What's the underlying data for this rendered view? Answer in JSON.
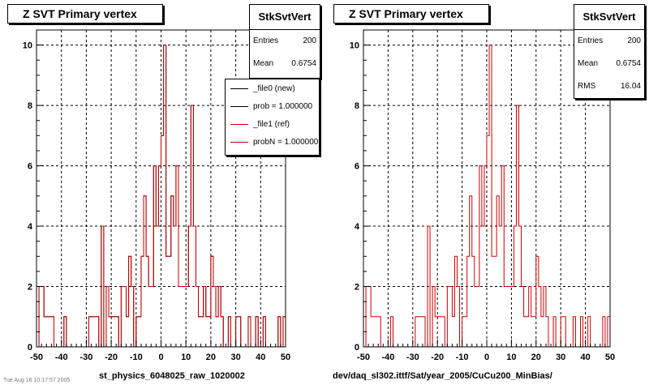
{
  "colors": {
    "ref": "#cc0000",
    "new": "#000000",
    "grid": "#000000"
  },
  "footer_text": "Tue Aug 16 10:17:57 2005",
  "panels": [
    {
      "title": "Z SVT Primary vertex",
      "stats": {
        "name": "StkSvtVert",
        "rows": [
          {
            "label": "Entries",
            "value": "200"
          },
          {
            "label": "Mean",
            "value": "0.6754"
          }
        ]
      },
      "legend": {
        "entries": [
          {
            "label": "_file0 (new)",
            "color": "#000000"
          },
          {
            "label": "prob = 1.000000",
            "color": "#000000"
          },
          {
            "label": "_file1 (ref)",
            "color": "#cc0000"
          },
          {
            "label": "probN = 1.000000",
            "color": "#cc0000"
          }
        ]
      },
      "xtitle": "st_physics_6048025_raw_1020002"
    },
    {
      "title": "Z SVT Primary vertex",
      "stats": {
        "name": "StkSvtVert",
        "rows": [
          {
            "label": "Entries",
            "value": "200"
          },
          {
            "label": "Mean",
            "value": "0.6754"
          },
          {
            "label": "RMS",
            "value": "16.04"
          }
        ]
      },
      "legend": null,
      "xtitle": "dev/daq_sl302.ittf/Sat/year_2005/CuCu200_MinBias/"
    }
  ],
  "chart_data": [
    {
      "type": "histogram",
      "title": "Z SVT Primary vertex",
      "xlabel": "st_physics_6048025_raw_1020002",
      "ylabel": "",
      "xlim": [
        -50,
        50
      ],
      "ylim": [
        0,
        10.5
      ],
      "xticks": [
        -50,
        -40,
        -30,
        -20,
        -10,
        0,
        10,
        20,
        30,
        40,
        50
      ],
      "yticks": [
        0,
        2,
        4,
        6,
        8,
        10
      ],
      "grid": true,
      "bin_width": 1,
      "bin_start": -50,
      "series": [
        {
          "name": "_file1 (ref)",
          "values": [
            0,
            2,
            2,
            1,
            1,
            1,
            1,
            0,
            0,
            0,
            0,
            1,
            0,
            0,
            0,
            0,
            0,
            0,
            0,
            0,
            0,
            1,
            1,
            1,
            1,
            0,
            4,
            0,
            2,
            1,
            1,
            1,
            1,
            0,
            2,
            2,
            1,
            3,
            2,
            0,
            1,
            1,
            3,
            5,
            3,
            2,
            2,
            6,
            4,
            6,
            7,
            10,
            3,
            3,
            5,
            4,
            6,
            2,
            2,
            2,
            2,
            4,
            8,
            4,
            2,
            1,
            1,
            2,
            1,
            1,
            3,
            2,
            1,
            2,
            1,
            0,
            0,
            1,
            0,
            0,
            1,
            1,
            0,
            0,
            0,
            1,
            0,
            0,
            1,
            0,
            0,
            1,
            0,
            0,
            0,
            0,
            0,
            1,
            0,
            1
          ]
        },
        {
          "name": "_file0 (new)",
          "values": [
            0,
            2,
            2,
            1,
            1,
            1,
            1,
            0,
            0,
            0,
            0,
            1,
            0,
            0,
            0,
            0,
            0,
            0,
            0,
            0,
            0,
            1,
            1,
            1,
            1,
            0,
            4,
            0,
            2,
            1,
            1,
            1,
            1,
            0,
            2,
            2,
            1,
            3,
            2,
            0,
            1,
            1,
            3,
            5,
            3,
            2,
            2,
            6,
            4,
            6,
            7,
            10,
            3,
            3,
            5,
            4,
            6,
            2,
            2,
            2,
            2,
            4,
            8,
            4,
            2,
            1,
            1,
            2,
            1,
            1,
            3,
            2,
            1,
            2,
            1,
            0,
            0,
            1,
            0,
            0,
            1,
            1,
            0,
            0,
            0,
            1,
            0,
            0,
            1,
            0,
            0,
            1,
            0,
            0,
            0,
            0,
            0,
            1,
            0,
            1
          ]
        }
      ]
    },
    {
      "type": "histogram",
      "title": "Z SVT Primary vertex",
      "xlabel": "dev/daq_sl302.ittf/Sat/year_2005/CuCu200_MinBias/",
      "ylabel": "",
      "xlim": [
        -50,
        50
      ],
      "ylim": [
        0,
        10.5
      ],
      "xticks": [
        -50,
        -40,
        -30,
        -20,
        -10,
        0,
        10,
        20,
        30,
        40,
        50
      ],
      "yticks": [
        0,
        2,
        4,
        6,
        8,
        10
      ],
      "grid": true,
      "bin_width": 1,
      "bin_start": -50,
      "series": [
        {
          "name": "_file1 (ref)",
          "values": [
            0,
            2,
            2,
            1,
            1,
            1,
            1,
            0,
            0,
            0,
            0,
            1,
            0,
            0,
            0,
            0,
            0,
            0,
            0,
            0,
            0,
            1,
            1,
            1,
            1,
            0,
            4,
            0,
            2,
            1,
            1,
            1,
            1,
            0,
            2,
            2,
            1,
            3,
            2,
            0,
            1,
            1,
            3,
            5,
            3,
            2,
            2,
            6,
            4,
            6,
            7,
            10,
            3,
            3,
            5,
            4,
            6,
            2,
            2,
            2,
            2,
            4,
            8,
            4,
            2,
            1,
            1,
            2,
            1,
            1,
            3,
            2,
            1,
            2,
            1,
            0,
            0,
            1,
            0,
            0,
            1,
            1,
            0,
            0,
            0,
            1,
            0,
            0,
            1,
            0,
            0,
            1,
            0,
            0,
            0,
            0,
            0,
            1,
            0,
            1
          ]
        }
      ]
    }
  ]
}
